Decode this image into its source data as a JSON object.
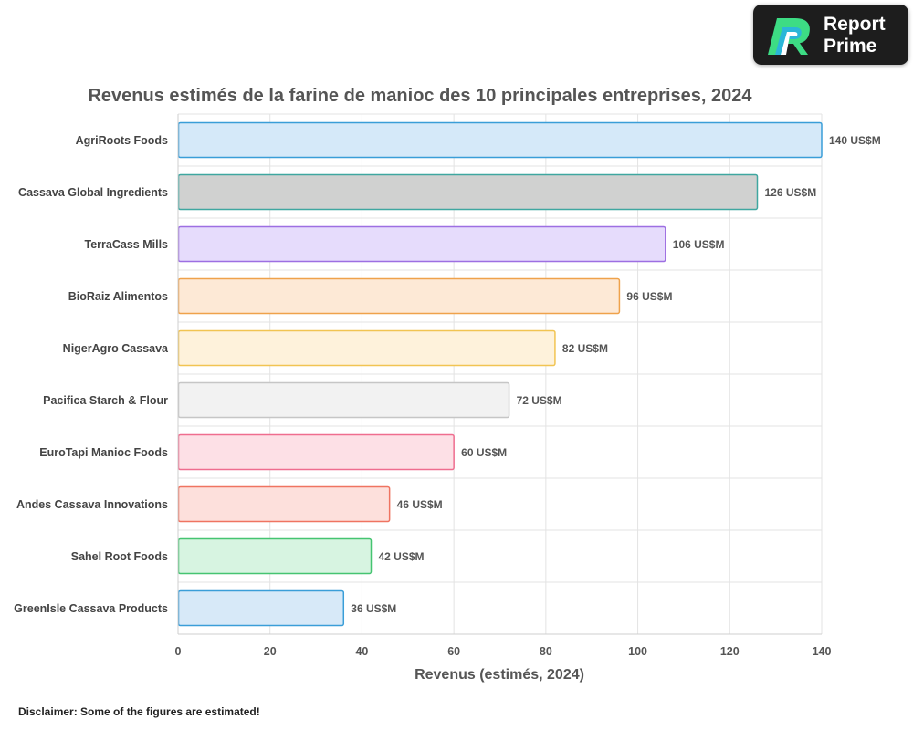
{
  "brand": {
    "line1": "Report",
    "line2": "Prime",
    "colors": [
      "#3ddc84",
      "#2bb6d8",
      "#ffffff"
    ]
  },
  "disclaimer": "Disclaimer: Some of the figures are estimated!",
  "chart_data": {
    "type": "bar",
    "orientation": "horizontal",
    "title": "Revenus estimés de la farine de manioc des 10 principales entreprises, 2024",
    "xlabel": "Revenus (estimés, 2024)",
    "ylabel": "",
    "xlim": [
      0,
      140
    ],
    "xticks": [
      0,
      20,
      40,
      60,
      80,
      100,
      120,
      140
    ],
    "grid": true,
    "value_suffix": " US$M",
    "categories": [
      "AgriRoots Foods",
      "Cassava Global Ingredients",
      "TerraCass Mills",
      "BioRaiz Alimentos",
      "NigerAgro Cassava",
      "Pacifica Starch & Flour",
      "EuroTapi Manioc Foods",
      "Andes Cassava Innovations",
      "Sahel Root Foods",
      "GreenIsle Cassava Products"
    ],
    "values": [
      140,
      126,
      106,
      96,
      82,
      72,
      60,
      46,
      42,
      36
    ],
    "fill_colors": [
      "#d5e9f9",
      "#d0d1d0",
      "#e6dcfc",
      "#fde9d6",
      "#fef2db",
      "#f2f2f2",
      "#fde0e6",
      "#fde0dc",
      "#d7f4e1",
      "#d7e9f8"
    ],
    "stroke_colors": [
      "#3a9ed8",
      "#3fa7a0",
      "#9d6fe2",
      "#efa24b",
      "#f1c452",
      "#c6c6c6",
      "#ef6d8f",
      "#ef7461",
      "#45c471",
      "#3a9ed8"
    ]
  }
}
